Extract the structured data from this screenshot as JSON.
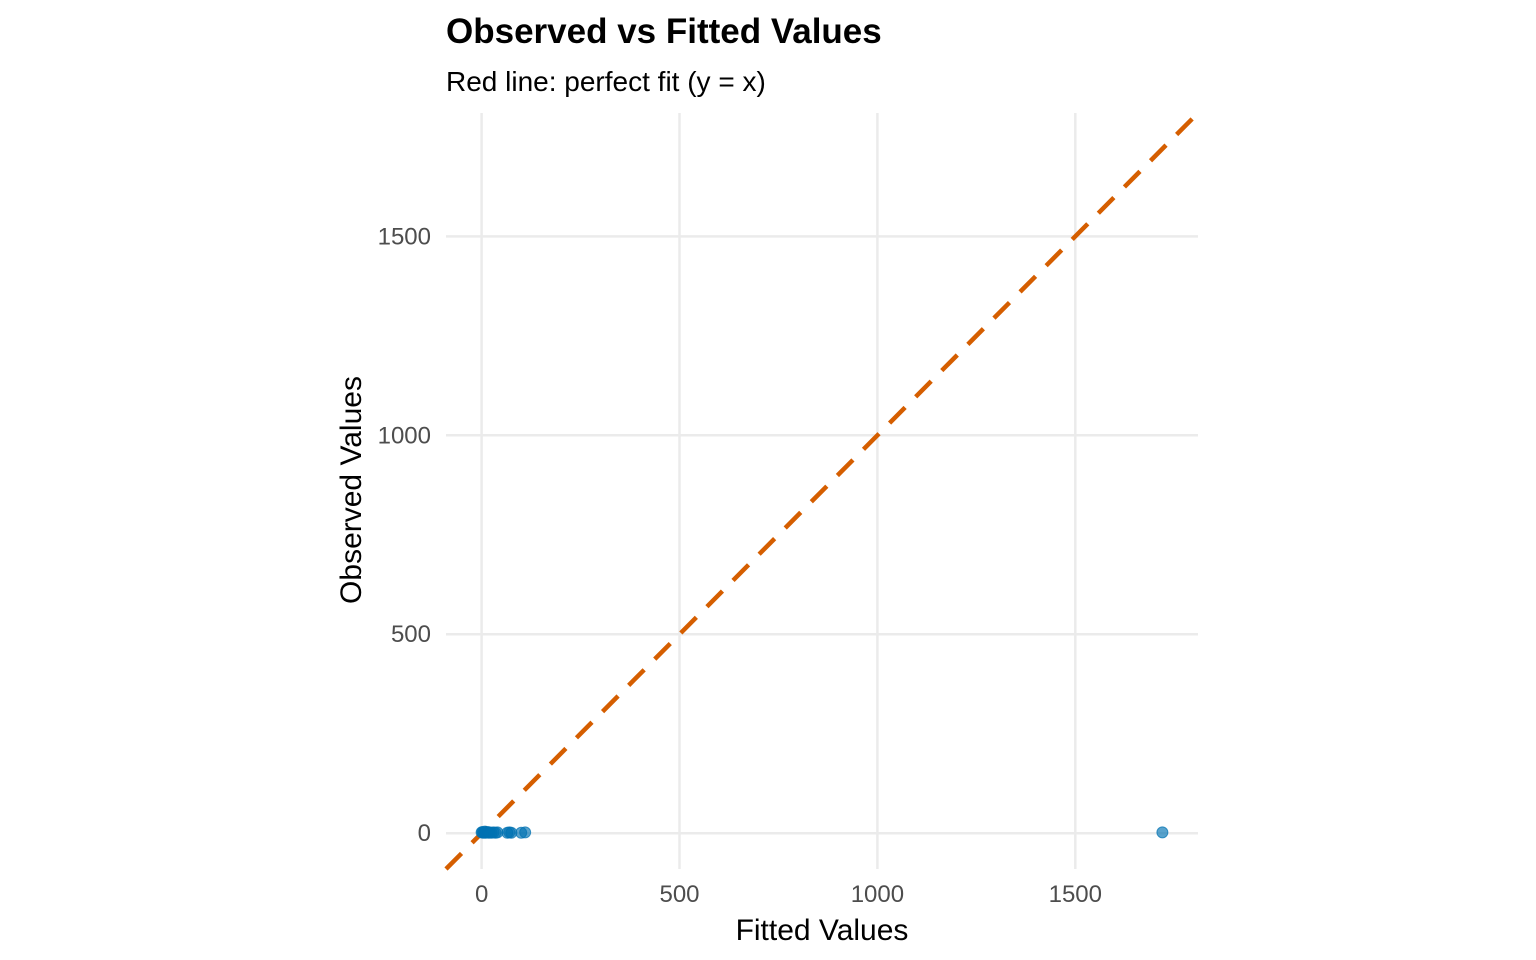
{
  "chart_data": {
    "type": "scatter",
    "title": "Observed vs Fitted Values",
    "subtitle": "Red line: perfect fit (y = x)",
    "xlabel": "Fitted Values",
    "ylabel": "Observed Values",
    "xlim": [
      -90,
      1810
    ],
    "ylim": [
      -90,
      1810
    ],
    "x_ticks": [
      0,
      500,
      1000,
      1500
    ],
    "y_ticks": [
      0,
      500,
      1000,
      1500
    ],
    "x_tick_labels": [
      "0",
      "500",
      "1000",
      "1500"
    ],
    "y_tick_labels": [
      "0",
      "500",
      "1000",
      "1500"
    ],
    "grid": true,
    "legend": "none",
    "point_color": "#0072B2",
    "reference_line_color": "#D55E00",
    "reference_line": {
      "slope": 1,
      "intercept": 0,
      "style": "dashed"
    },
    "points": [
      {
        "x": 0,
        "y": 2
      },
      {
        "x": 2,
        "y": 3
      },
      {
        "x": 4,
        "y": 1
      },
      {
        "x": 6,
        "y": 2
      },
      {
        "x": 8,
        "y": 4
      },
      {
        "x": 10,
        "y": 1
      },
      {
        "x": 12,
        "y": 2
      },
      {
        "x": 15,
        "y": 3
      },
      {
        "x": 18,
        "y": 1
      },
      {
        "x": 20,
        "y": 2
      },
      {
        "x": 25,
        "y": 1
      },
      {
        "x": 30,
        "y": 2
      },
      {
        "x": 35,
        "y": 1
      },
      {
        "x": 40,
        "y": 2
      },
      {
        "x": 65,
        "y": 1
      },
      {
        "x": 70,
        "y": 2
      },
      {
        "x": 75,
        "y": 1
      },
      {
        "x": 100,
        "y": 1
      },
      {
        "x": 110,
        "y": 2
      },
      {
        "x": 1720,
        "y": 2
      }
    ]
  }
}
